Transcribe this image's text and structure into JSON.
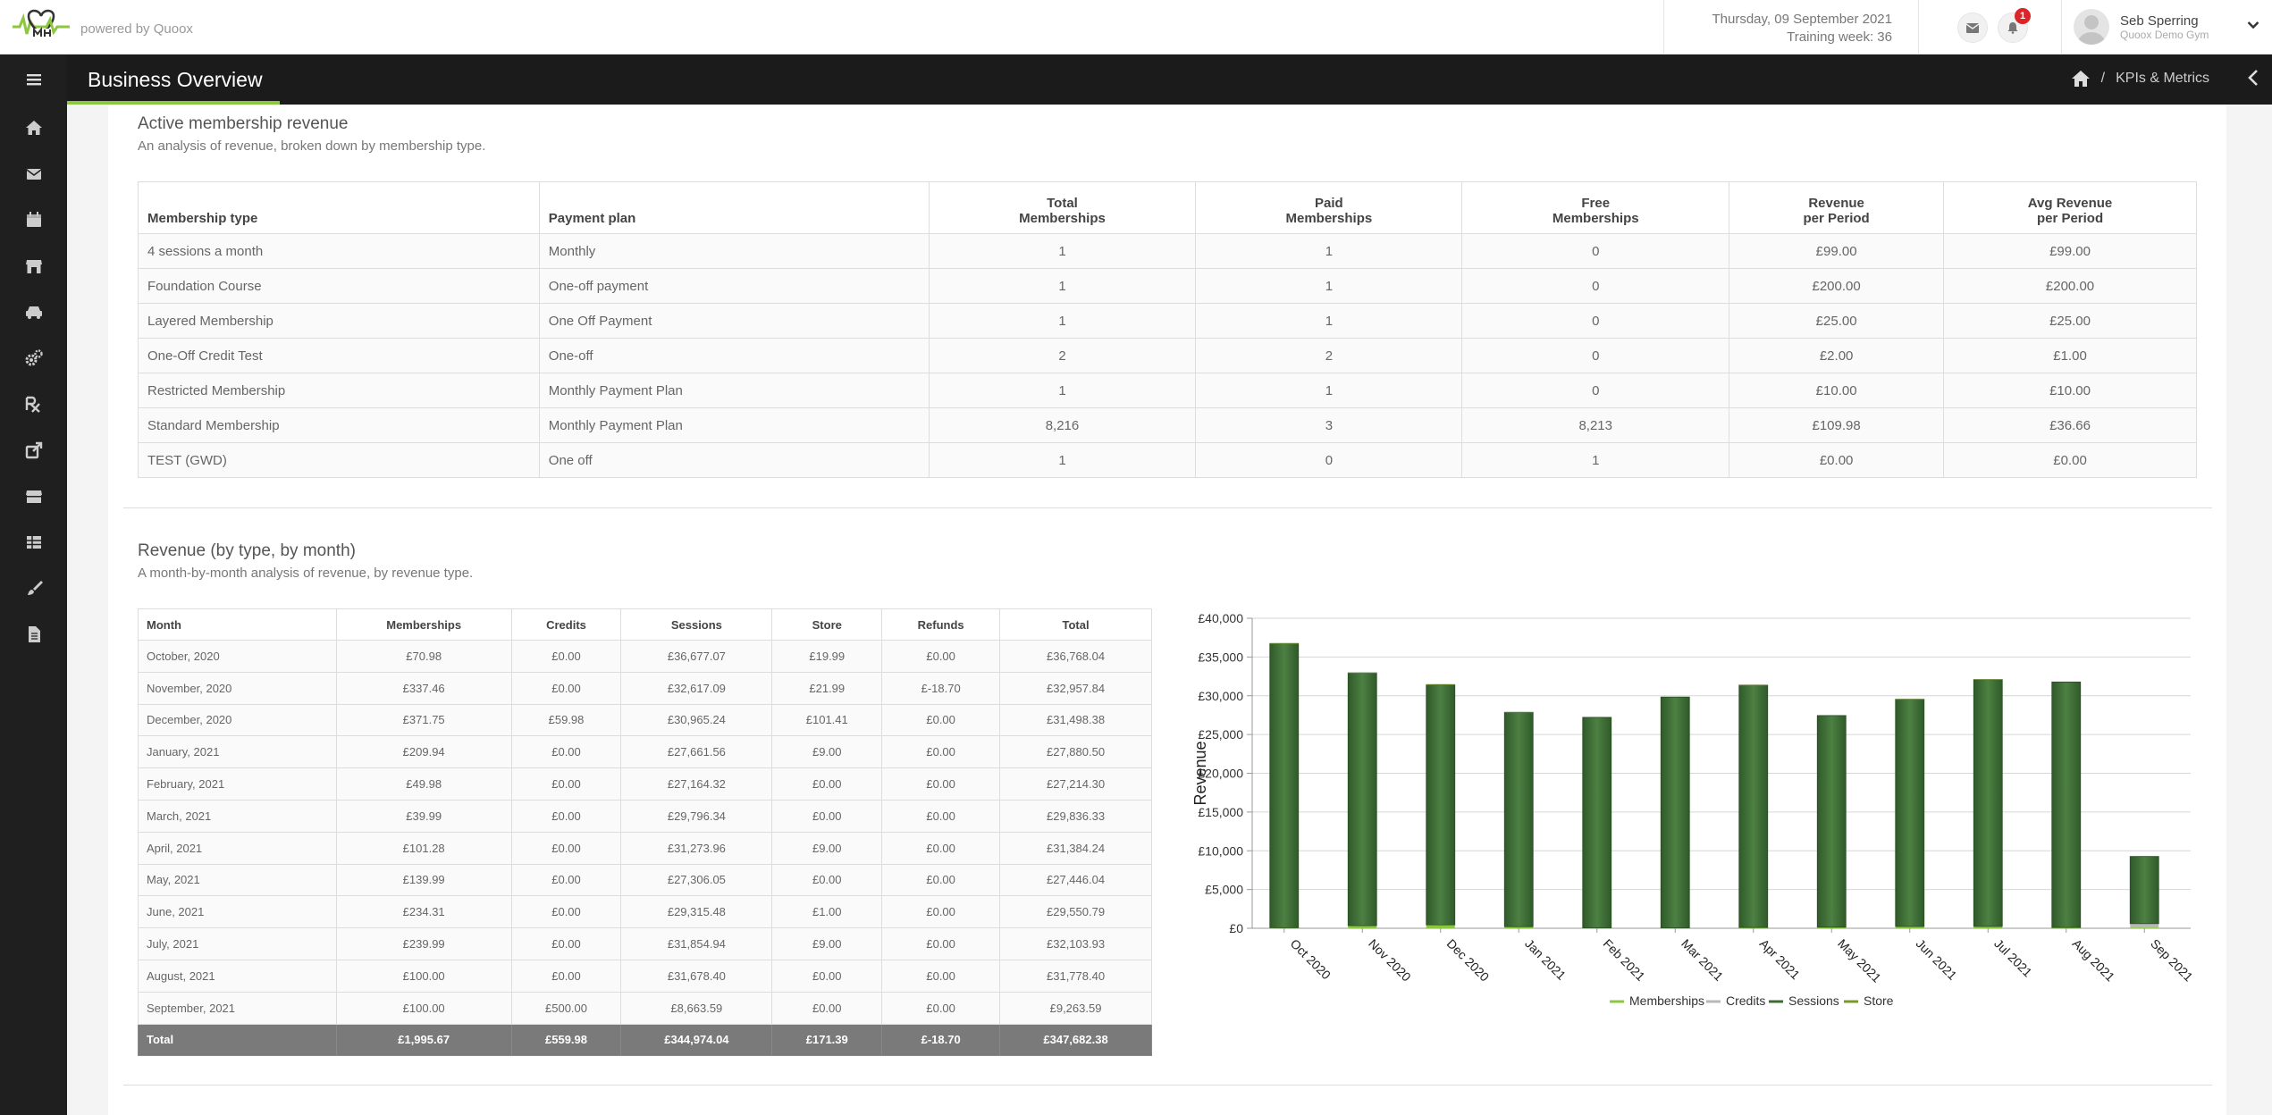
{
  "topbar": {
    "powered_by": "powered by Quoox",
    "date": "Thursday, 09 September 2021",
    "training_week": "Training week: 36",
    "notification_count": "1",
    "user_name": "Seb Sperring",
    "user_gym": "Quoox Demo Gym"
  },
  "header": {
    "title": "Business Overview",
    "breadcrumb_current": "KPIs & Metrics",
    "breadcrumb_sep": "/"
  },
  "colors": {
    "accent": "#8dc63f",
    "sessions_bar": "#3d6b35",
    "memberships": "#8dc63f",
    "credits": "#b8b8b8",
    "store": "#7a9a2a"
  },
  "sidebar": {
    "items": [
      "menu-icon",
      "home-icon",
      "mail-icon",
      "calendar-icon",
      "store-icon",
      "car-icon",
      "cogs-icon",
      "rx-icon",
      "share-icon",
      "archive-icon",
      "table-icon",
      "brush-icon",
      "document-icon"
    ]
  },
  "membership": {
    "title": "Active membership revenue",
    "subtitle": "An analysis of revenue, broken down by membership type.",
    "headers": {
      "type": "Membership type",
      "plan": "Payment plan",
      "total_1": "Total",
      "total_2": "Memberships",
      "paid_1": "Paid",
      "paid_2": "Memberships",
      "free_1": "Free",
      "free_2": "Memberships",
      "rev_1": "Revenue",
      "rev_2": "per Period",
      "avg_1": "Avg Revenue",
      "avg_2": "per Period"
    },
    "rows": [
      {
        "type": "4 sessions a month",
        "plan": "Monthly",
        "total": "1",
        "paid": "1",
        "free": "0",
        "rev": "£99.00",
        "avg": "£99.00"
      },
      {
        "type": "Foundation Course",
        "plan": "One-off payment",
        "total": "1",
        "paid": "1",
        "free": "0",
        "rev": "£200.00",
        "avg": "£200.00"
      },
      {
        "type": "Layered Membership",
        "plan": "One Off Payment",
        "total": "1",
        "paid": "1",
        "free": "0",
        "rev": "£25.00",
        "avg": "£25.00"
      },
      {
        "type": "One-Off Credit Test",
        "plan": "One-off",
        "total": "2",
        "paid": "2",
        "free": "0",
        "rev": "£2.00",
        "avg": "£1.00"
      },
      {
        "type": "Restricted Membership",
        "plan": "Monthly Payment Plan",
        "total": "1",
        "paid": "1",
        "free": "0",
        "rev": "£10.00",
        "avg": "£10.00"
      },
      {
        "type": "Standard Membership",
        "plan": "Monthly Payment Plan",
        "total": "8,216",
        "paid": "3",
        "free": "8,213",
        "rev": "£109.98",
        "avg": "£36.66"
      },
      {
        "type": "TEST (GWD)",
        "plan": "One off",
        "total": "1",
        "paid": "0",
        "free": "1",
        "rev": "£0.00",
        "avg": "£0.00"
      }
    ]
  },
  "revenue": {
    "title": "Revenue (by type, by month)",
    "subtitle": "A month-by-month analysis of revenue, by revenue type.",
    "headers": [
      "Month",
      "Memberships",
      "Credits",
      "Sessions",
      "Store",
      "Refunds",
      "Total"
    ],
    "rows": [
      [
        "October, 2020",
        "£70.98",
        "£0.00",
        "£36,677.07",
        "£19.99",
        "£0.00",
        "£36,768.04"
      ],
      [
        "November, 2020",
        "£337.46",
        "£0.00",
        "£32,617.09",
        "£21.99",
        "£-18.70",
        "£32,957.84"
      ],
      [
        "December, 2020",
        "£371.75",
        "£59.98",
        "£30,965.24",
        "£101.41",
        "£0.00",
        "£31,498.38"
      ],
      [
        "January, 2021",
        "£209.94",
        "£0.00",
        "£27,661.56",
        "£9.00",
        "£0.00",
        "£27,880.50"
      ],
      [
        "February, 2021",
        "£49.98",
        "£0.00",
        "£27,164.32",
        "£0.00",
        "£0.00",
        "£27,214.30"
      ],
      [
        "March, 2021",
        "£39.99",
        "£0.00",
        "£29,796.34",
        "£0.00",
        "£0.00",
        "£29,836.33"
      ],
      [
        "April, 2021",
        "£101.28",
        "£0.00",
        "£31,273.96",
        "£9.00",
        "£0.00",
        "£31,384.24"
      ],
      [
        "May, 2021",
        "£139.99",
        "£0.00",
        "£27,306.05",
        "£0.00",
        "£0.00",
        "£27,446.04"
      ],
      [
        "June, 2021",
        "£234.31",
        "£0.00",
        "£29,315.48",
        "£1.00",
        "£0.00",
        "£29,550.79"
      ],
      [
        "July, 2021",
        "£239.99",
        "£0.00",
        "£31,854.94",
        "£9.00",
        "£0.00",
        "£32,103.93"
      ],
      [
        "August, 2021",
        "£100.00",
        "£0.00",
        "£31,678.40",
        "£0.00",
        "£0.00",
        "£31,778.40"
      ],
      [
        "September, 2021",
        "£100.00",
        "£500.00",
        "£8,663.59",
        "£0.00",
        "£0.00",
        "£9,263.59"
      ]
    ],
    "total": [
      "Total",
      "£1,995.67",
      "£559.98",
      "£344,974.04",
      "£171.39",
      "£-18.70",
      "£347,682.38"
    ]
  },
  "chart_data": {
    "type": "bar",
    "stacked": true,
    "categories": [
      "Oct 2020",
      "Nov 2020",
      "Dec 2020",
      "Jan 2021",
      "Feb 2021",
      "Mar 2021",
      "Apr 2021",
      "May 2021",
      "Jun 2021",
      "Jul 2021",
      "Aug 2021",
      "Sep 2021"
    ],
    "series": [
      {
        "name": "Memberships",
        "color": "#8dc63f",
        "values": [
          70.98,
          337.46,
          371.75,
          209.94,
          49.98,
          39.99,
          101.28,
          139.99,
          234.31,
          239.99,
          100.0,
          100.0
        ]
      },
      {
        "name": "Credits",
        "color": "#b8b8b8",
        "values": [
          0,
          0,
          59.98,
          0,
          0,
          0,
          0,
          0,
          0,
          0,
          0,
          500.0
        ]
      },
      {
        "name": "Sessions",
        "color": "#3d6b35",
        "values": [
          36677.07,
          32617.09,
          30965.24,
          27661.56,
          27164.32,
          29796.34,
          31273.96,
          27306.05,
          29315.48,
          31854.94,
          31678.4,
          8663.59
        ]
      },
      {
        "name": "Store",
        "color": "#7a9a2a",
        "values": [
          19.99,
          21.99,
          101.41,
          9.0,
          0,
          0,
          9.0,
          0,
          1.0,
          9.0,
          0,
          0
        ]
      }
    ],
    "ylabel": "Revenue",
    "ylim": [
      0,
      40000
    ],
    "yticks": [
      "£0",
      "£5,000",
      "£10,000",
      "£15,000",
      "£20,000",
      "£25,000",
      "£30,000",
      "£35,000",
      "£40,000"
    ],
    "legend": "bottom-center",
    "grid": true
  }
}
